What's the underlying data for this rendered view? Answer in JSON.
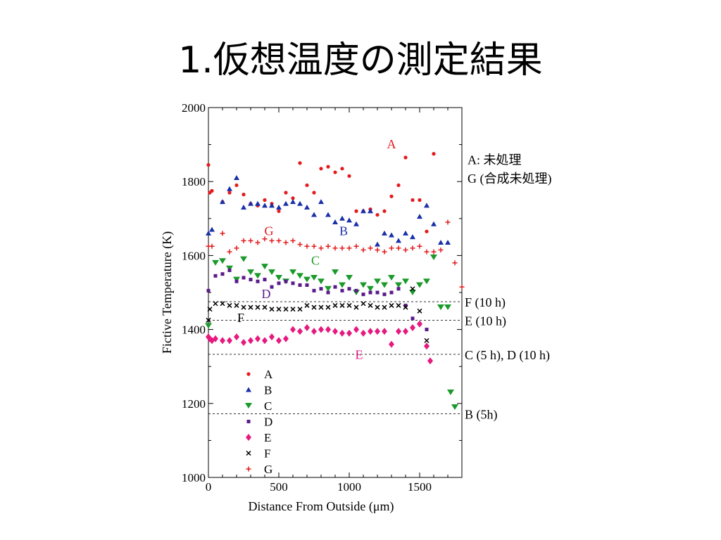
{
  "slide": {
    "title": "1.仮想温度の測定結果"
  },
  "chart_data": {
    "type": "scatter",
    "title": "",
    "xlabel": "Distance From Outside (μm)",
    "ylabel": "Fictive Temperature (K)",
    "xlim": [
      0,
      1800
    ],
    "ylim": [
      1000,
      2000
    ],
    "xticks": [
      0,
      500,
      1000,
      1500
    ],
    "yticks": [
      1000,
      1200,
      1400,
      1600,
      1800,
      2000
    ],
    "grid": false,
    "legend_position": "lower-left inside",
    "series": [
      {
        "name": "A",
        "color": "#e41a1c",
        "marker": "circle",
        "x": [
          0,
          10,
          25,
          100,
          150,
          200,
          250,
          300,
          350,
          400,
          450,
          500,
          550,
          600,
          650,
          700,
          750,
          800,
          850,
          900,
          950,
          1000,
          1050,
          1100,
          1150,
          1200,
          1250,
          1300,
          1350,
          1400,
          1450,
          1500,
          1550,
          1600
        ],
        "y": [
          1845,
          1770,
          1775,
          1745,
          1770,
          1790,
          1765,
          1740,
          1735,
          1750,
          1740,
          1720,
          1770,
          1755,
          1850,
          1790,
          1770,
          1835,
          1840,
          1825,
          1835,
          1815,
          1720,
          1720,
          1725,
          1710,
          1720,
          1760,
          1790,
          1865,
          1750,
          1750,
          1665,
          1875
        ]
      },
      {
        "name": "B",
        "color": "#1a2fa8",
        "marker": "triangle-up",
        "x": [
          0,
          25,
          100,
          150,
          200,
          250,
          300,
          350,
          400,
          450,
          500,
          550,
          600,
          650,
          700,
          750,
          800,
          850,
          900,
          950,
          1000,
          1050,
          1100,
          1150,
          1200,
          1250,
          1300,
          1350,
          1400,
          1450,
          1500,
          1550,
          1600,
          1650,
          1700
        ],
        "y": [
          1660,
          1670,
          1745,
          1780,
          1810,
          1730,
          1740,
          1740,
          1735,
          1735,
          1730,
          1740,
          1745,
          1740,
          1730,
          1710,
          1745,
          1710,
          1690,
          1700,
          1695,
          1685,
          1720,
          1720,
          1630,
          1660,
          1655,
          1640,
          1660,
          1650,
          1705,
          1735,
          1685,
          1635,
          1635
        ]
      },
      {
        "name": "C",
        "color": "#1a9a2a",
        "marker": "triangle-down",
        "x": [
          0,
          50,
          100,
          150,
          200,
          250,
          300,
          350,
          400,
          450,
          500,
          550,
          600,
          650,
          700,
          750,
          800,
          850,
          900,
          950,
          1000,
          1050,
          1100,
          1150,
          1200,
          1250,
          1300,
          1350,
          1400,
          1450,
          1500,
          1550,
          1600,
          1650,
          1700,
          1720,
          1750
        ],
        "y": [
          1410,
          1580,
          1585,
          1565,
          1535,
          1590,
          1555,
          1545,
          1570,
          1555,
          1540,
          1530,
          1555,
          1545,
          1535,
          1540,
          1530,
          1510,
          1555,
          1520,
          1540,
          1500,
          1520,
          1510,
          1530,
          1520,
          1540,
          1520,
          1530,
          1500,
          1520,
          1530,
          1595,
          1460,
          1460,
          1230,
          1190
        ]
      },
      {
        "name": "D",
        "color": "#5a1a8a",
        "marker": "square",
        "x": [
          0,
          50,
          100,
          150,
          200,
          250,
          300,
          350,
          400,
          450,
          500,
          550,
          600,
          650,
          700,
          750,
          800,
          850,
          900,
          950,
          1000,
          1050,
          1100,
          1150,
          1200,
          1250,
          1300,
          1350,
          1400,
          1450,
          1500,
          1550
        ],
        "y": [
          1505,
          1545,
          1550,
          1560,
          1530,
          1540,
          1535,
          1530,
          1535,
          1515,
          1525,
          1530,
          1525,
          1520,
          1520,
          1505,
          1510,
          1500,
          1515,
          1505,
          1510,
          1505,
          1495,
          1500,
          1500,
          1495,
          1500,
          1510,
          1465,
          1430,
          1415,
          1400
        ]
      },
      {
        "name": "E",
        "color": "#e6197f",
        "marker": "diamond",
        "x": [
          0,
          10,
          25,
          50,
          100,
          150,
          200,
          250,
          300,
          350,
          400,
          450,
          500,
          550,
          600,
          650,
          700,
          750,
          800,
          850,
          900,
          950,
          1000,
          1050,
          1100,
          1150,
          1200,
          1250,
          1300,
          1350,
          1400,
          1450,
          1500,
          1550,
          1575
        ],
        "y": [
          1380,
          1375,
          1370,
          1375,
          1370,
          1370,
          1380,
          1365,
          1370,
          1375,
          1370,
          1380,
          1370,
          1375,
          1400,
          1395,
          1405,
          1395,
          1400,
          1400,
          1395,
          1390,
          1390,
          1400,
          1390,
          1395,
          1395,
          1395,
          1360,
          1395,
          1395,
          1405,
          1415,
          1355,
          1315
        ]
      },
      {
        "name": "F",
        "color": "#000000",
        "marker": "cross",
        "x": [
          0,
          10,
          50,
          100,
          150,
          200,
          250,
          300,
          350,
          400,
          450,
          500,
          550,
          600,
          650,
          700,
          750,
          800,
          850,
          900,
          950,
          1000,
          1050,
          1100,
          1150,
          1200,
          1250,
          1300,
          1350,
          1400,
          1450,
          1500,
          1550
        ],
        "y": [
          1425,
          1455,
          1470,
          1470,
          1465,
          1465,
          1460,
          1460,
          1460,
          1460,
          1455,
          1455,
          1455,
          1455,
          1455,
          1465,
          1460,
          1460,
          1460,
          1465,
          1465,
          1465,
          1460,
          1470,
          1465,
          1460,
          1460,
          1465,
          1465,
          1460,
          1510,
          1450,
          1370
        ]
      },
      {
        "name": "G",
        "color": "#e41a1c",
        "marker": "plus",
        "x": [
          0,
          25,
          100,
          150,
          200,
          250,
          300,
          350,
          400,
          450,
          500,
          550,
          600,
          650,
          700,
          750,
          800,
          850,
          900,
          950,
          1000,
          1050,
          1100,
          1150,
          1200,
          1250,
          1300,
          1350,
          1400,
          1450,
          1500,
          1550,
          1600,
          1650,
          1700,
          1750,
          1800
        ],
        "y": [
          1625,
          1625,
          1660,
          1610,
          1620,
          1640,
          1640,
          1635,
          1645,
          1640,
          1640,
          1635,
          1640,
          1630,
          1625,
          1625,
          1620,
          1625,
          1620,
          1620,
          1620,
          1625,
          1615,
          1620,
          1615,
          1610,
          1620,
          1620,
          1615,
          1620,
          1625,
          1610,
          1610,
          1615,
          1690,
          1580,
          1515
        ]
      }
    ],
    "reference_lines": [
      {
        "y": 1475,
        "label": "F (10 h)"
      },
      {
        "y": 1425,
        "label": "E (10 h)"
      },
      {
        "y": 1333,
        "label": "C (5 h), D (10 h)"
      },
      {
        "y": 1172,
        "label": "B (5h)"
      }
    ],
    "annotations": [
      {
        "text": "A: 未処理",
        "y": 1860,
        "color": "#000000"
      },
      {
        "text": "G (合成未処理)",
        "y": 1810,
        "color": "#000000"
      }
    ],
    "inline_labels": [
      {
        "text": "A",
        "x": 1300,
        "y": 1890,
        "color": "#e41a1c"
      },
      {
        "text": "G",
        "x": 430,
        "y": 1655,
        "color": "#e41a1c"
      },
      {
        "text": "B",
        "x": 960,
        "y": 1655,
        "color": "#1a2fa8"
      },
      {
        "text": "C",
        "x": 760,
        "y": 1575,
        "color": "#1a9a2a"
      },
      {
        "text": "D",
        "x": 410,
        "y": 1485,
        "color": "#5a1a8a"
      },
      {
        "text": "F",
        "x": 230,
        "y": 1420,
        "color": "#000000"
      },
      {
        "text": "E",
        "x": 1070,
        "y": 1320,
        "color": "#e6197f"
      }
    ]
  }
}
